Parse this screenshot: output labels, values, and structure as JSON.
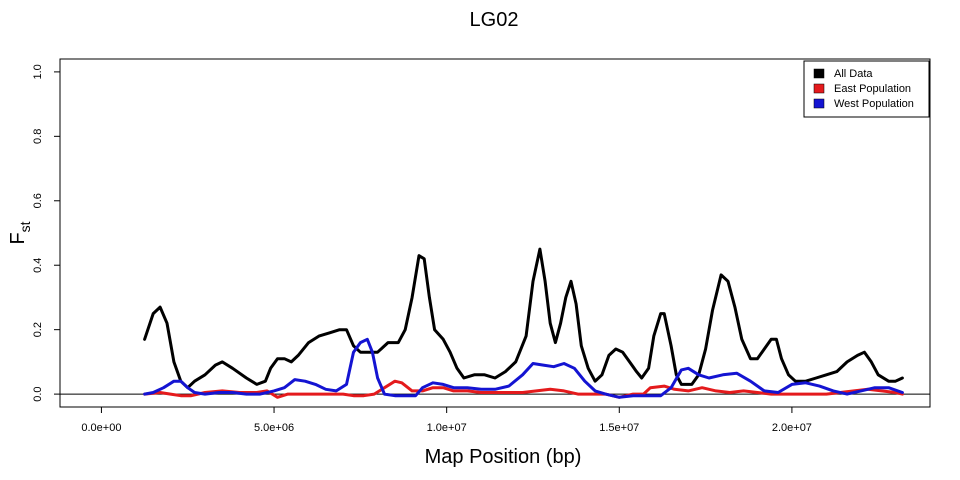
{
  "chart_data": {
    "type": "line",
    "title": "LG02",
    "xlabel": "Map Position (bp)",
    "ylabel_main": "F",
    "ylabel_sub": "st",
    "xlim": [
      -1200000,
      24000000
    ],
    "ylim": [
      -0.04,
      1.04
    ],
    "x_ticks": [
      0,
      5000000,
      10000000,
      15000000,
      20000000
    ],
    "x_tick_labels": [
      "0.0e+00",
      "5.0e+06",
      "1.0e+07",
      "1.5e+07",
      "2.0e+07"
    ],
    "y_ticks": [
      0.0,
      0.2,
      0.4,
      0.6,
      0.8,
      1.0
    ],
    "y_tick_labels": [
      "0.0",
      "0.2",
      "0.4",
      "0.6",
      "0.8",
      "1.0"
    ],
    "hline": 0,
    "legend_position": "top-right",
    "series": [
      {
        "name": "All Data",
        "color": "#000000",
        "points": [
          [
            1250000,
            0.17
          ],
          [
            1500000,
            0.25
          ],
          [
            1700000,
            0.27
          ],
          [
            1900000,
            0.22
          ],
          [
            2100000,
            0.1
          ],
          [
            2300000,
            0.04
          ],
          [
            2500000,
            0.02
          ],
          [
            2700000,
            0.04
          ],
          [
            3000000,
            0.06
          ],
          [
            3300000,
            0.09
          ],
          [
            3500000,
            0.1
          ],
          [
            3800000,
            0.08
          ],
          [
            4200000,
            0.05
          ],
          [
            4500000,
            0.03
          ],
          [
            4750000,
            0.04
          ],
          [
            4900000,
            0.08
          ],
          [
            5100000,
            0.11
          ],
          [
            5300000,
            0.11
          ],
          [
            5500000,
            0.1
          ],
          [
            5700000,
            0.12
          ],
          [
            6000000,
            0.16
          ],
          [
            6300000,
            0.18
          ],
          [
            6600000,
            0.19
          ],
          [
            6900000,
            0.2
          ],
          [
            7100000,
            0.2
          ],
          [
            7300000,
            0.15
          ],
          [
            7500000,
            0.13
          ],
          [
            7800000,
            0.13
          ],
          [
            8000000,
            0.13
          ],
          [
            8300000,
            0.16
          ],
          [
            8600000,
            0.16
          ],
          [
            8800000,
            0.2
          ],
          [
            9000000,
            0.3
          ],
          [
            9200000,
            0.43
          ],
          [
            9350000,
            0.42
          ],
          [
            9500000,
            0.3
          ],
          [
            9650000,
            0.2
          ],
          [
            9900000,
            0.17
          ],
          [
            10100000,
            0.13
          ],
          [
            10300000,
            0.08
          ],
          [
            10500000,
            0.05
          ],
          [
            10800000,
            0.06
          ],
          [
            11100000,
            0.06
          ],
          [
            11400000,
            0.05
          ],
          [
            11700000,
            0.07
          ],
          [
            12000000,
            0.1
          ],
          [
            12300000,
            0.18
          ],
          [
            12500000,
            0.35
          ],
          [
            12700000,
            0.45
          ],
          [
            12850000,
            0.35
          ],
          [
            13000000,
            0.22
          ],
          [
            13150000,
            0.16
          ],
          [
            13300000,
            0.22
          ],
          [
            13450000,
            0.3
          ],
          [
            13600000,
            0.35
          ],
          [
            13750000,
            0.28
          ],
          [
            13900000,
            0.15
          ],
          [
            14100000,
            0.08
          ],
          [
            14300000,
            0.04
          ],
          [
            14500000,
            0.06
          ],
          [
            14700000,
            0.12
          ],
          [
            14900000,
            0.14
          ],
          [
            15100000,
            0.13
          ],
          [
            15300000,
            0.1
          ],
          [
            15500000,
            0.07
          ],
          [
            15650000,
            0.05
          ],
          [
            15850000,
            0.08
          ],
          [
            16000000,
            0.18
          ],
          [
            16200000,
            0.25
          ],
          [
            16300000,
            0.25
          ],
          [
            16500000,
            0.15
          ],
          [
            16650000,
            0.06
          ],
          [
            16800000,
            0.03
          ],
          [
            17100000,
            0.03
          ],
          [
            17300000,
            0.06
          ],
          [
            17500000,
            0.14
          ],
          [
            17700000,
            0.26
          ],
          [
            17950000,
            0.37
          ],
          [
            18150000,
            0.35
          ],
          [
            18350000,
            0.27
          ],
          [
            18550000,
            0.17
          ],
          [
            18800000,
            0.11
          ],
          [
            19000000,
            0.11
          ],
          [
            19200000,
            0.14
          ],
          [
            19400000,
            0.17
          ],
          [
            19550000,
            0.17
          ],
          [
            19700000,
            0.11
          ],
          [
            19900000,
            0.06
          ],
          [
            20100000,
            0.04
          ],
          [
            20400000,
            0.04
          ],
          [
            20700000,
            0.05
          ],
          [
            21000000,
            0.06
          ],
          [
            21300000,
            0.07
          ],
          [
            21600000,
            0.1
          ],
          [
            21900000,
            0.12
          ],
          [
            22100000,
            0.13
          ],
          [
            22300000,
            0.1
          ],
          [
            22500000,
            0.06
          ],
          [
            22800000,
            0.04
          ],
          [
            23000000,
            0.04
          ],
          [
            23200000,
            0.05
          ]
        ]
      },
      {
        "name": "East Population",
        "color": "#e41a1c",
        "points": [
          [
            1250000,
            0.0
          ],
          [
            1700000,
            0.005
          ],
          [
            2000000,
            0.0
          ],
          [
            2300000,
            -0.005
          ],
          [
            2600000,
            -0.005
          ],
          [
            3000000,
            0.005
          ],
          [
            3500000,
            0.01
          ],
          [
            4000000,
            0.005
          ],
          [
            4500000,
            0.005
          ],
          [
            4800000,
            0.01
          ],
          [
            5100000,
            -0.01
          ],
          [
            5400000,
            0.0
          ],
          [
            5800000,
            0.0
          ],
          [
            6200000,
            0.0
          ],
          [
            6600000,
            0.0
          ],
          [
            7000000,
            0.0
          ],
          [
            7300000,
            -0.005
          ],
          [
            7600000,
            -0.005
          ],
          [
            7900000,
            0.0
          ],
          [
            8200000,
            0.02
          ],
          [
            8500000,
            0.04
          ],
          [
            8700000,
            0.035
          ],
          [
            9000000,
            0.01
          ],
          [
            9300000,
            0.01
          ],
          [
            9600000,
            0.02
          ],
          [
            9900000,
            0.02
          ],
          [
            10200000,
            0.01
          ],
          [
            10600000,
            0.01
          ],
          [
            11000000,
            0.005
          ],
          [
            11400000,
            0.005
          ],
          [
            11800000,
            0.005
          ],
          [
            12200000,
            0.005
          ],
          [
            12600000,
            0.01
          ],
          [
            13000000,
            0.015
          ],
          [
            13400000,
            0.01
          ],
          [
            13800000,
            0.0
          ],
          [
            14200000,
            0.0
          ],
          [
            14600000,
            0.0
          ],
          [
            15000000,
            -0.01
          ],
          [
            15400000,
            0.0
          ],
          [
            15700000,
            0.0
          ],
          [
            15900000,
            0.02
          ],
          [
            16300000,
            0.025
          ],
          [
            16600000,
            0.015
          ],
          [
            17000000,
            0.01
          ],
          [
            17400000,
            0.02
          ],
          [
            17800000,
            0.01
          ],
          [
            18200000,
            0.005
          ],
          [
            18600000,
            0.01
          ],
          [
            19000000,
            0.005
          ],
          [
            19400000,
            0.0
          ],
          [
            19800000,
            0.0
          ],
          [
            20200000,
            0.0
          ],
          [
            20600000,
            0.0
          ],
          [
            21000000,
            0.0
          ],
          [
            21400000,
            0.005
          ],
          [
            21800000,
            0.01
          ],
          [
            22200000,
            0.015
          ],
          [
            22600000,
            0.01
          ],
          [
            23000000,
            0.005
          ],
          [
            23200000,
            0.0
          ]
        ]
      },
      {
        "name": "West Population",
        "color": "#1414d2",
        "points": [
          [
            1250000,
            0.0
          ],
          [
            1500000,
            0.005
          ],
          [
            1800000,
            0.02
          ],
          [
            2100000,
            0.04
          ],
          [
            2300000,
            0.04
          ],
          [
            2500000,
            0.02
          ],
          [
            2700000,
            0.005
          ],
          [
            3000000,
            0.0
          ],
          [
            3400000,
            0.005
          ],
          [
            3800000,
            0.005
          ],
          [
            4200000,
            0.0
          ],
          [
            4600000,
            0.0
          ],
          [
            5000000,
            0.01
          ],
          [
            5300000,
            0.02
          ],
          [
            5600000,
            0.045
          ],
          [
            5900000,
            0.04
          ],
          [
            6200000,
            0.03
          ],
          [
            6500000,
            0.015
          ],
          [
            6800000,
            0.01
          ],
          [
            7100000,
            0.03
          ],
          [
            7300000,
            0.13
          ],
          [
            7500000,
            0.16
          ],
          [
            7700000,
            0.17
          ],
          [
            7850000,
            0.13
          ],
          [
            8000000,
            0.05
          ],
          [
            8200000,
            0.0
          ],
          [
            8500000,
            -0.005
          ],
          [
            8800000,
            -0.005
          ],
          [
            9100000,
            -0.005
          ],
          [
            9300000,
            0.02
          ],
          [
            9600000,
            0.035
          ],
          [
            9900000,
            0.03
          ],
          [
            10200000,
            0.02
          ],
          [
            10600000,
            0.02
          ],
          [
            11000000,
            0.015
          ],
          [
            11400000,
            0.015
          ],
          [
            11800000,
            0.025
          ],
          [
            12200000,
            0.06
          ],
          [
            12500000,
            0.095
          ],
          [
            12800000,
            0.09
          ],
          [
            13100000,
            0.085
          ],
          [
            13400000,
            0.095
          ],
          [
            13700000,
            0.08
          ],
          [
            14000000,
            0.04
          ],
          [
            14300000,
            0.01
          ],
          [
            14600000,
            0.0
          ],
          [
            15000000,
            -0.01
          ],
          [
            15400000,
            -0.005
          ],
          [
            15800000,
            -0.005
          ],
          [
            16200000,
            -0.005
          ],
          [
            16500000,
            0.02
          ],
          [
            16800000,
            0.075
          ],
          [
            17000000,
            0.08
          ],
          [
            17300000,
            0.06
          ],
          [
            17600000,
            0.05
          ],
          [
            18000000,
            0.06
          ],
          [
            18400000,
            0.065
          ],
          [
            18800000,
            0.04
          ],
          [
            19200000,
            0.01
          ],
          [
            19600000,
            0.005
          ],
          [
            20000000,
            0.03
          ],
          [
            20400000,
            0.035
          ],
          [
            20800000,
            0.025
          ],
          [
            21200000,
            0.01
          ],
          [
            21600000,
            0.0
          ],
          [
            22000000,
            0.01
          ],
          [
            22400000,
            0.02
          ],
          [
            22800000,
            0.02
          ],
          [
            23200000,
            0.005
          ]
        ]
      }
    ]
  }
}
